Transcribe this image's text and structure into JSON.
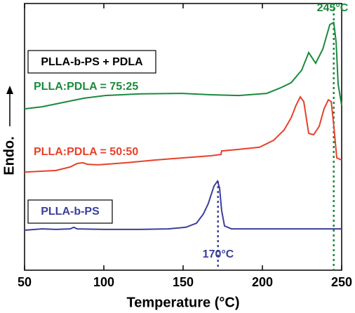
{
  "chart_data": {
    "type": "line",
    "xlabel": "Temperature (°C)",
    "ylabel": "Endo.",
    "xlim": [
      50,
      250
    ],
    "xticks": [
      50,
      100,
      150,
      200,
      250
    ],
    "ylim": [
      0,
      100
    ],
    "boxed_label": "PLLA-b-PS + PDLA",
    "annotations": [
      "245°C",
      "170°C"
    ],
    "reference_lines": [
      245,
      172
    ],
    "series": [
      {
        "name": "PLLA:PDLA = 75:25",
        "color": "#1a8a3c",
        "x": [
          50,
          61.1,
          74.3,
          87.6,
          100.9,
          123,
          149.6,
          167.3,
          185,
          202.7,
          211.5,
          218.1,
          224.8,
          229.2,
          233.6,
          238.1,
          242.5,
          245,
          246.5,
          247.8,
          250
        ],
        "values": [
          60.5,
          61.3,
          62.9,
          64.5,
          65.5,
          66.1,
          66.3,
          65.8,
          65.5,
          66.3,
          68.4,
          70.3,
          75,
          81.6,
          77.6,
          82.9,
          92.1,
          92.9,
          85.5,
          69.7,
          61.8
        ]
      },
      {
        "name": "PLLA:PDLA = 50:50",
        "color": "#e8402a",
        "x": [
          50,
          69.9,
          78.8,
          83.2,
          86.7,
          89.8,
          96.5,
          114.2,
          131.9,
          149.6,
          167.3,
          173.9,
          174.3,
          185,
          198.2,
          207.1,
          213.7,
          218.1,
          221.2,
          223.9,
          226.1,
          229.2,
          232.3,
          235.8,
          238.9,
          241.6,
          243.4,
          245.1,
          246.9,
          250
        ],
        "values": [
          36.8,
          37.4,
          38.7,
          40,
          40.3,
          39.7,
          39.5,
          40.3,
          41.3,
          42.1,
          42.9,
          43.4,
          44.7,
          45.3,
          46.1,
          48.7,
          52.6,
          57.1,
          61.8,
          65,
          63.2,
          51.3,
          50.8,
          53.9,
          60.5,
          63.9,
          63.2,
          53.9,
          42.1,
          41.3
        ]
      },
      {
        "name": "PLLA-b-PS",
        "color": "#3b3f9a",
        "x": [
          50,
          61.1,
          69.9,
          78.8,
          81,
          83.2,
          100.9,
          123,
          140.7,
          151.8,
          158.4,
          162.8,
          165.9,
          167.3,
          169.5,
          171.7,
          173,
          174.3,
          176.1,
          180.5,
          193.8,
          220.4,
          250
        ],
        "values": [
          15,
          15.5,
          15.3,
          15.5,
          16.1,
          15.5,
          15.3,
          15.3,
          15.5,
          16.1,
          17.6,
          21.1,
          25,
          27.6,
          31.6,
          33.4,
          30.8,
          22.4,
          16.6,
          15.5,
          15.5,
          15.5,
          15.5
        ]
      }
    ]
  }
}
